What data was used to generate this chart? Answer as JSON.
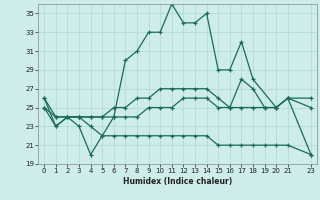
{
  "xlabel": "Humidex (Indice chaleur)",
  "bg_color": "#ceecea",
  "grid_color": "#afd8d4",
  "line_color": "#1a6b5a",
  "xlim": [
    -0.5,
    23.5
  ],
  "ylim": [
    19,
    36
  ],
  "yticks": [
    19,
    21,
    23,
    25,
    27,
    29,
    31,
    33,
    35
  ],
  "xticks": [
    0,
    1,
    2,
    3,
    4,
    5,
    6,
    7,
    8,
    9,
    10,
    11,
    12,
    13,
    14,
    15,
    16,
    17,
    18,
    19,
    20,
    21,
    23
  ],
  "xtick_labels": [
    "0",
    "1",
    "2",
    "3",
    "4",
    "5",
    "6",
    "7",
    "8",
    "9",
    "10",
    "11",
    "12",
    "13",
    "14",
    "15",
    "16",
    "17",
    "18",
    "19",
    "20",
    "21",
    "23"
  ],
  "series": [
    {
      "x": [
        0,
        1,
        2,
        3,
        4,
        5,
        6,
        7,
        8,
        9,
        10,
        11,
        12,
        13,
        14,
        15,
        16,
        17,
        18,
        20,
        21,
        23
      ],
      "y": [
        26,
        23,
        24,
        23,
        20,
        22,
        24,
        30,
        31,
        33,
        33,
        36,
        34,
        34,
        35,
        29,
        29,
        32,
        28,
        25,
        26,
        20
      ]
    },
    {
      "x": [
        0,
        1,
        2,
        3,
        4,
        5,
        6,
        7,
        8,
        9,
        10,
        11,
        12,
        13,
        14,
        15,
        16,
        17,
        18,
        19,
        20,
        21,
        23
      ],
      "y": [
        26,
        24,
        24,
        24,
        24,
        24,
        25,
        25,
        26,
        26,
        27,
        27,
        27,
        27,
        27,
        26,
        25,
        28,
        27,
        25,
        25,
        26,
        26
      ]
    },
    {
      "x": [
        0,
        1,
        2,
        3,
        4,
        5,
        6,
        7,
        8,
        9,
        10,
        11,
        12,
        13,
        14,
        15,
        16,
        17,
        18,
        19,
        20,
        21,
        23
      ],
      "y": [
        25,
        24,
        24,
        24,
        24,
        24,
        24,
        24,
        24,
        25,
        25,
        25,
        26,
        26,
        26,
        25,
        25,
        25,
        25,
        25,
        25,
        26,
        25
      ]
    },
    {
      "x": [
        0,
        1,
        2,
        3,
        4,
        5,
        6,
        7,
        8,
        9,
        10,
        11,
        12,
        13,
        14,
        15,
        16,
        17,
        18,
        19,
        20,
        21,
        23
      ],
      "y": [
        25,
        23,
        24,
        24,
        23,
        22,
        22,
        22,
        22,
        22,
        22,
        22,
        22,
        22,
        22,
        21,
        21,
        21,
        21,
        21,
        21,
        21,
        20
      ]
    }
  ]
}
